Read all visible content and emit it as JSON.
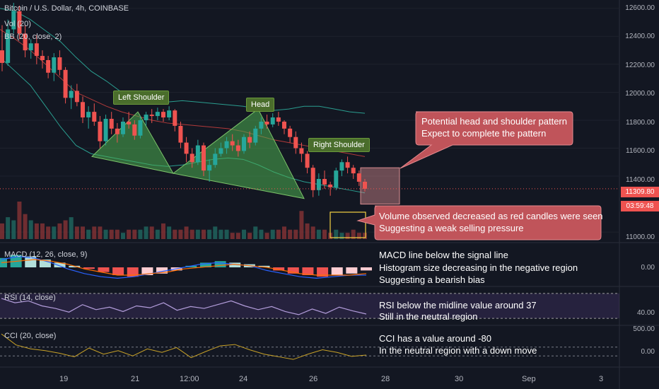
{
  "header": {
    "symbol_line": "Bitcoin / U.S. Dollar, 4h, COINBASE",
    "volume_line": "Vol (20)",
    "bb_line": "BB (20, close, 2)"
  },
  "pattern_labels": {
    "left_shoulder": "Left Shoulder",
    "head": "Head",
    "right_shoulder": "Right Shoulder"
  },
  "callouts": {
    "pattern": [
      "Potential head and shoulder pattern",
      "Expect to complete the pattern"
    ],
    "volume": [
      "Volume observed decreased as red candles were seen",
      "Suggesting a weak selling pressure"
    ]
  },
  "indicators": {
    "macd": {
      "title": "MACD (12, 26, close, 9)",
      "notes": [
        "MACD line below the signal line",
        "Histogram size decreasing in the negative region",
        "Suggesting a bearish bias"
      ],
      "axis_tick": "0.00"
    },
    "rsi": {
      "title": "RSI (14, close)",
      "notes": [
        "RSI below the midline value around 37",
        "Still in the neutral region"
      ],
      "axis_tick": "40.00"
    },
    "cci": {
      "title": "CCI (20, close)",
      "notes": [
        "CCI  has a value around -80",
        "In the neutral region with a down move"
      ],
      "axis_ticks": [
        "500.00",
        "0.00"
      ]
    }
  },
  "price_axis": {
    "ticks": [
      "12600.00",
      "12400.00",
      "12200.00",
      "12000.00",
      "11800.00",
      "11600.00",
      "11400.00",
      "11000.00"
    ],
    "current_price": "11309.80",
    "countdown": "03:59:48"
  },
  "time_axis": {
    "ticks": [
      "19",
      "21",
      "12:00",
      "24",
      "26",
      "28",
      "30",
      "Sep",
      "3"
    ]
  },
  "colors": {
    "up": "#26a69a",
    "down": "#ef5350",
    "background": "#131722",
    "pattern_fill": "#4caf50",
    "callout": "#c0545a"
  },
  "chart_data": {
    "type": "candlestick",
    "title": "Bitcoin / U.S. Dollar, 4h, COINBASE",
    "ylim": [
      10950,
      12660
    ],
    "y_ticks": [
      11000,
      11400,
      11600,
      11800,
      12000,
      12200,
      12400,
      12600
    ],
    "current_price": 11309.8,
    "candles": [
      [
        12300,
        12480,
        12150,
        12210
      ],
      [
        12210,
        12520,
        12190,
        12450
      ],
      [
        12450,
        12640,
        12420,
        12580
      ],
      [
        12580,
        12620,
        12380,
        12420
      ],
      [
        12420,
        12480,
        12250,
        12300
      ],
      [
        12300,
        12380,
        12240,
        12350
      ],
      [
        12350,
        12410,
        12200,
        12260
      ],
      [
        12260,
        12300,
        12170,
        12230
      ],
      [
        12230,
        12260,
        12100,
        12140
      ],
      [
        12140,
        12280,
        12080,
        12250
      ],
      [
        12250,
        12300,
        12120,
        12160
      ],
      [
        12160,
        12180,
        11920,
        11960
      ],
      [
        11960,
        12050,
        11880,
        12010
      ],
      [
        12010,
        12060,
        11900,
        11930
      ],
      [
        11930,
        11970,
        11780,
        11820
      ],
      [
        11820,
        11900,
        11740,
        11860
      ],
      [
        11860,
        11920,
        11760,
        11790
      ],
      [
        11790,
        11830,
        11600,
        11650
      ],
      [
        11650,
        11840,
        11620,
        11810
      ],
      [
        11810,
        11860,
        11700,
        11740
      ],
      [
        11740,
        11780,
        11640,
        11700
      ],
      [
        11700,
        11820,
        11680,
        11790
      ],
      [
        11790,
        11860,
        11740,
        11770
      ],
      [
        11770,
        11800,
        11660,
        11690
      ],
      [
        11690,
        11830,
        11670,
        11800
      ],
      [
        11800,
        11860,
        11760,
        11840
      ],
      [
        11840,
        11880,
        11780,
        11830
      ],
      [
        11830,
        11890,
        11800,
        11860
      ],
      [
        11860,
        11880,
        11790,
        11820
      ],
      [
        11820,
        11900,
        11800,
        11870
      ],
      [
        11870,
        11880,
        11720,
        11760
      ],
      [
        11760,
        11790,
        11600,
        11640
      ],
      [
        11640,
        11680,
        11500,
        11560
      ],
      [
        11560,
        11600,
        11460,
        11500
      ],
      [
        11500,
        11660,
        11480,
        11620
      ],
      [
        11620,
        11640,
        11400,
        11440
      ],
      [
        11440,
        11520,
        11360,
        11480
      ],
      [
        11480,
        11600,
        11460,
        11560
      ],
      [
        11560,
        11640,
        11540,
        11600
      ],
      [
        11600,
        11680,
        11560,
        11650
      ],
      [
        11650,
        11700,
        11580,
        11620
      ],
      [
        11620,
        11660,
        11540,
        11580
      ],
      [
        11580,
        11700,
        11560,
        11680
      ],
      [
        11680,
        11720,
        11600,
        11640
      ],
      [
        11640,
        11760,
        11620,
        11740
      ],
      [
        11740,
        11820,
        11700,
        11790
      ],
      [
        11790,
        11840,
        11740,
        11770
      ],
      [
        11770,
        11850,
        11750,
        11820
      ],
      [
        11820,
        11860,
        11760,
        11790
      ],
      [
        11790,
        11800,
        11700,
        11740
      ],
      [
        11740,
        11760,
        11640,
        11680
      ],
      [
        11680,
        11720,
        11560,
        11600
      ],
      [
        11600,
        11640,
        11500,
        11560
      ],
      [
        11560,
        11580,
        11420,
        11460
      ],
      [
        11460,
        11480,
        11250,
        11300
      ],
      [
        11300,
        11420,
        11260,
        11380
      ],
      [
        11380,
        11440,
        11310,
        11340
      ],
      [
        11340,
        11360,
        11260,
        11320
      ],
      [
        11320,
        11460,
        11300,
        11440
      ],
      [
        11440,
        11520,
        11400,
        11500
      ],
      [
        11500,
        11540,
        11420,
        11460
      ],
      [
        11460,
        11480,
        11380,
        11420
      ],
      [
        11420,
        11440,
        11330,
        11360
      ],
      [
        11360,
        11380,
        11290,
        11309.8
      ]
    ],
    "candle_x_range": [
      3,
      516
    ],
    "bollinger": {
      "upper": [
        12600,
        12580,
        12520,
        12440,
        12360,
        12250,
        12150,
        12080,
        12000,
        11960,
        11940,
        11930,
        11940,
        11930,
        11920,
        11910,
        11900,
        11880,
        11870,
        11880,
        11900,
        11900,
        11880,
        11860,
        11850
      ],
      "middle": [
        12450,
        12380,
        12300,
        12200,
        12100,
        12000,
        11950,
        11900,
        11860,
        11830,
        11800,
        11780,
        11770,
        11760,
        11750,
        11740,
        11720,
        11690,
        11660,
        11640,
        11620,
        11600,
        11580,
        11560,
        11540
      ],
      "lower": [
        12250,
        12150,
        12050,
        11900,
        11750,
        11620,
        11560,
        11540,
        11520,
        11500,
        11480,
        11470,
        11480,
        11500,
        11520,
        11530,
        11520,
        11480,
        11430,
        11390,
        11360,
        11340,
        11320,
        11300,
        11280
      ]
    },
    "pattern_triangles": [
      {
        "name": "Left Shoulder",
        "points": [
          [
            130,
            11540
          ],
          [
            195,
            11860
          ],
          [
            245,
            11420
          ]
        ]
      },
      {
        "name": "Head",
        "points": [
          [
            245,
            11420
          ],
          [
            365,
            11880
          ],
          [
            430,
            11240
          ]
        ]
      }
    ],
    "projection_box": {
      "x_range": [
        510,
        565
      ],
      "y_range": [
        11200,
        11460
      ]
    },
    "volume": [
      5,
      7,
      6,
      12,
      8,
      6,
      5,
      5,
      4,
      4,
      5,
      6,
      7,
      4,
      4,
      3,
      4,
      4,
      3,
      3,
      3,
      2,
      3,
      3,
      3,
      4,
      4,
      3,
      5,
      4,
      3,
      3,
      4,
      3,
      3,
      3,
      3,
      4,
      3,
      3,
      2,
      2,
      3,
      2,
      4,
      3,
      2,
      3,
      3,
      4,
      3,
      3,
      9,
      5,
      4,
      3,
      3,
      2,
      3,
      2,
      2,
      3,
      2,
      2
    ],
    "macd": {
      "histogram": [
        0.6,
        0.8,
        0.7,
        0.5,
        0.3,
        0.1,
        -0.1,
        -0.3,
        -0.5,
        -0.6,
        -0.5,
        -0.4,
        -0.2,
        0.1,
        0.3,
        0.4,
        0.3,
        0.2,
        0.1,
        -0.2,
        -0.4,
        -0.5,
        -0.6,
        -0.5,
        -0.4,
        -0.2
      ],
      "macd_line": [
        0.5,
        0.7,
        0.6,
        0.3,
        -0.1,
        -0.4,
        -0.6,
        -0.7,
        -0.6,
        -0.4,
        -0.2,
        0.0,
        0.2,
        0.3,
        0.2,
        0.1,
        -0.2,
        -0.4,
        -0.6,
        -0.7,
        -0.6,
        -0.5,
        -0.5
      ],
      "signal_line": [
        0.3,
        0.4,
        0.5,
        0.4,
        0.2,
        -0.1,
        -0.3,
        -0.5,
        -0.5,
        -0.4,
        -0.3,
        -0.1,
        0.0,
        0.1,
        0.2,
        0.1,
        0.0,
        -0.2,
        -0.4,
        -0.5,
        -0.5,
        -0.5,
        -0.4
      ]
    },
    "rsi": [
      62,
      55,
      58,
      50,
      46,
      40,
      52,
      44,
      48,
      41,
      50,
      47,
      55,
      43,
      49,
      46,
      52,
      58,
      50,
      44,
      49,
      41,
      36,
      45,
      38,
      48,
      42,
      37
    ],
    "cci": [
      400,
      150,
      60,
      20,
      -40,
      -120,
      80,
      -60,
      20,
      -100,
      60,
      -20,
      90,
      -140,
      0,
      130,
      160,
      40,
      -60,
      -120,
      -180,
      -60,
      40,
      -20,
      -110,
      -80
    ],
    "time_ticks": [
      "19",
      "21",
      "12:00",
      "24",
      "26",
      "28",
      "30",
      "Sep",
      "3"
    ]
  }
}
